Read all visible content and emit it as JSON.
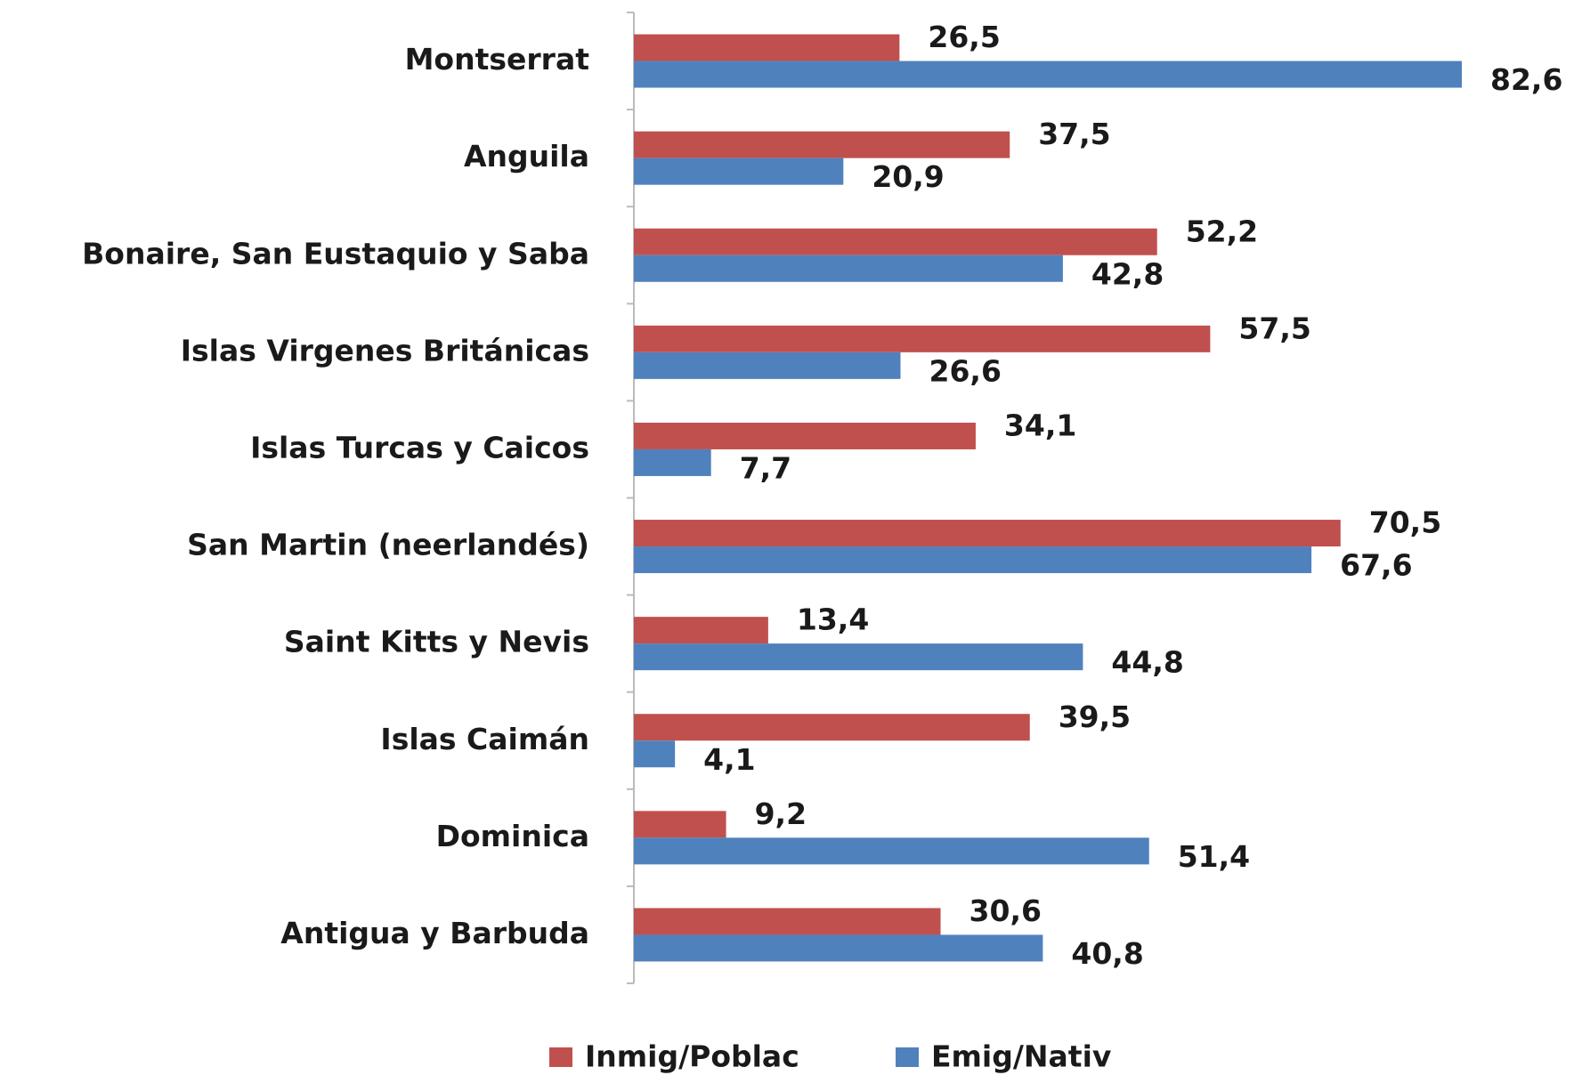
{
  "chart_data": {
    "type": "bar",
    "orientation": "horizontal",
    "categories": [
      "Montserrat",
      "Anguila",
      "Bonaire, San Eustaquio y Saba",
      "Islas Virgenes Británicas",
      "Islas Turcas y Caicos",
      "San Martin (neerlandés)",
      "Saint Kitts y Nevis",
      "Islas Caimán",
      "Dominica",
      "Antigua y Barbuda"
    ],
    "series": [
      {
        "name": "Inmig/Poblac",
        "color": "#c0504d",
        "values": [
          26.5,
          37.5,
          52.2,
          57.5,
          34.1,
          70.5,
          13.4,
          39.5,
          9.2,
          30.6
        ],
        "value_labels": [
          "26,5",
          "37,5",
          "52,2",
          "57,5",
          "34,1",
          "70,5",
          "13,4",
          "39,5",
          "9,2",
          "30,6"
        ]
      },
      {
        "name": "Emig/Nativ",
        "color": "#4f81bd",
        "values": [
          82.6,
          20.9,
          42.8,
          26.6,
          7.7,
          67.6,
          44.8,
          4.1,
          51.4,
          40.8
        ],
        "value_labels": [
          "82,6",
          "20,9",
          "42,8",
          "26,6",
          "7,7",
          "67,6",
          "44,8",
          "4,1",
          "51,4",
          "40,8"
        ]
      }
    ],
    "legend": "bottom"
  }
}
